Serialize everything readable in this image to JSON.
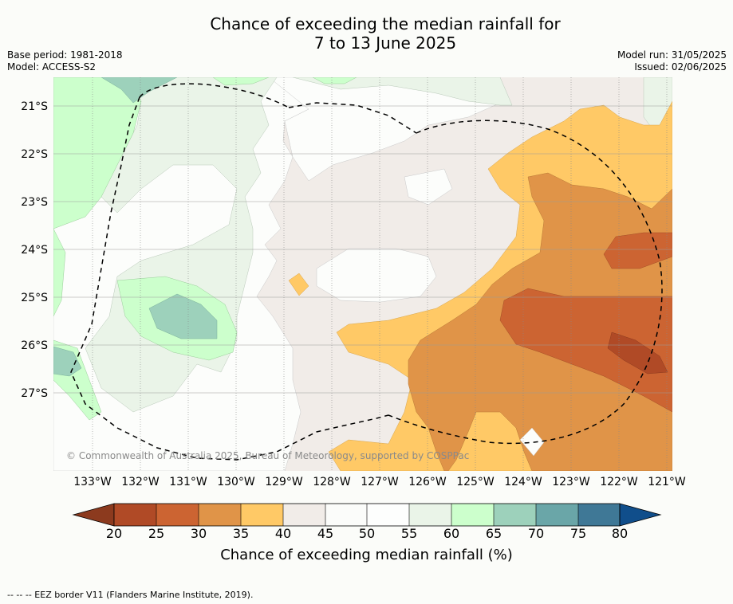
{
  "title_line1": "Chance of exceeding the median rainfall for",
  "title_line2": "7 to 13 June 2025",
  "base_period": "Base period: 1981-2018",
  "model": "Model: ACCESS-S2",
  "model_run": "Model run: 31/05/2025",
  "issued": "Issued: 02/06/2025",
  "lat_labels": [
    "21°S",
    "22°S",
    "23°S",
    "24°S",
    "25°S",
    "26°S",
    "27°S"
  ],
  "lon_labels": [
    "133°W",
    "132°W",
    "131°W",
    "130°W",
    "129°W",
    "128°W",
    "127°W",
    "126°W",
    "125°W",
    "124°W",
    "123°W",
    "122°W",
    "121°W"
  ],
  "copyright": "© Commonwealth of Australia 2025, Bureau of Meteorology, supported by COSPPac",
  "colorbar": {
    "ticks": [
      "20",
      "25",
      "30",
      "35",
      "40",
      "45",
      "50",
      "55",
      "60",
      "65",
      "70",
      "75",
      "80"
    ],
    "title": "Chance of exceeding median rainfall (%)",
    "colors": {
      "below20": "#8c3a1e",
      "20-25": "#b04a26",
      "25-30": "#cc6432",
      "30-35": "#e09448",
      "35-40": "#ffc966",
      "40-45": "#f1ece8",
      "45-50": "#fbfcfa",
      "50-55": "#fdfefd",
      "55-60": "#eaf4e8",
      "60-65": "#ccffcc",
      "65-70": "#9dd1bb",
      "70-75": "#6aa6a8",
      "75-80": "#3f7896",
      "above80": "#104e8b"
    }
  },
  "legend_note": "--  --  -- EEZ border V11 (Flanders Marine Institute, 2019)."
}
